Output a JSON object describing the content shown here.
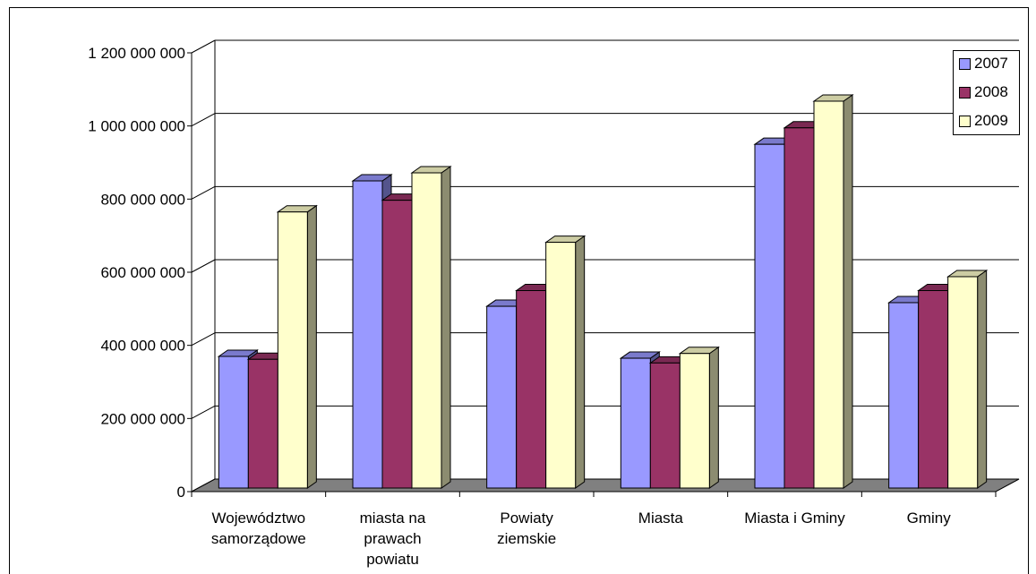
{
  "chart_data": {
    "type": "bar",
    "style": "3d-clustered-column",
    "categories": [
      [
        "Województwo",
        "samorządowe"
      ],
      [
        "miasta na",
        "prawach",
        "powiatu"
      ],
      [
        "Powiaty",
        "ziemskie"
      ],
      [
        "Miasta"
      ],
      [
        "Miasta i Gminy"
      ],
      [
        "Gminy"
      ]
    ],
    "series": [
      {
        "name": "2007",
        "color": "#9999ff",
        "values": [
          360000000,
          840000000,
          497000000,
          355000000,
          940000000,
          507000000
        ]
      },
      {
        "name": "2008",
        "color": "#993366",
        "values": [
          352000000,
          787000000,
          540000000,
          342000000,
          985000000,
          540000000
        ]
      },
      {
        "name": "2009",
        "color": "#ffffcc",
        "values": [
          755000000,
          862000000,
          672000000,
          368000000,
          1058000000,
          578000000
        ]
      }
    ],
    "ylim": [
      0,
      1200000000
    ],
    "yticks": [
      0,
      200000000,
      400000000,
      600000000,
      800000000,
      1000000000,
      1200000000
    ],
    "ytick_labels": [
      "0",
      "200 000 000",
      "400 000 000",
      "600 000 000",
      "800 000 000",
      "1 000 000 000",
      "1 200 000 000"
    ],
    "grid": true,
    "legend_position": "top-right"
  }
}
